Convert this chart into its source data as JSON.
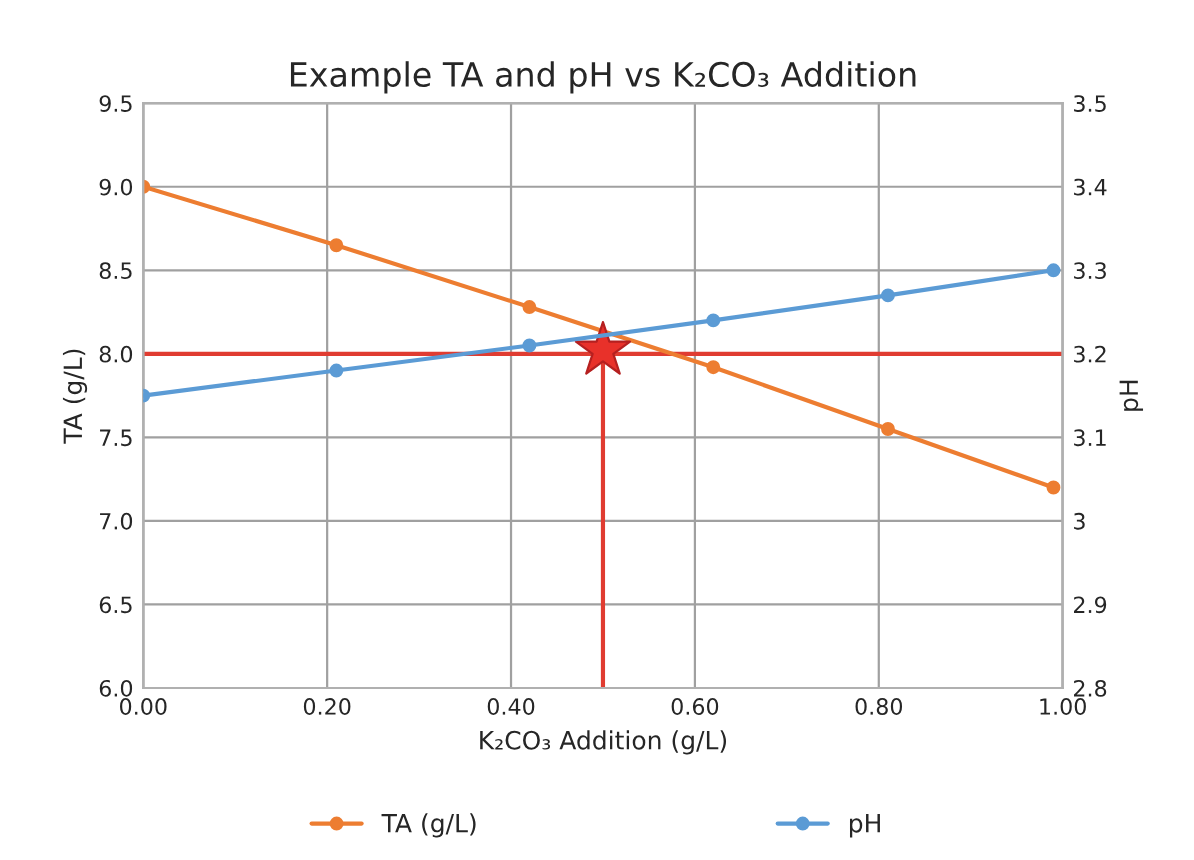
{
  "chart_data": {
    "type": "line",
    "title": "Example TA and pH vs K₂CO₃ Addition",
    "xlabel": "K₂CO₃ Addition (g/L)",
    "ylabel": "TA (g/L)",
    "y2label": "pH",
    "xlim": [
      0,
      1
    ],
    "xticks": [
      {
        "value": 0,
        "label": "0.00"
      },
      {
        "value": 0.2,
        "label": "0.20"
      },
      {
        "value": 0.4,
        "label": "0.40"
      },
      {
        "value": 0.6,
        "label": "0.60"
      },
      {
        "value": 0.8,
        "label": "0.80"
      },
      {
        "value": 1,
        "label": "1.00"
      }
    ],
    "ylim": [
      6,
      9.5
    ],
    "yticks": [
      {
        "value": 6,
        "label": "6.0"
      },
      {
        "value": 6.5,
        "label": "6.5"
      },
      {
        "value": 7,
        "label": "7.0"
      },
      {
        "value": 7.5,
        "label": "7.5"
      },
      {
        "value": 8,
        "label": "8.0"
      },
      {
        "value": 8.5,
        "label": "8.5"
      },
      {
        "value": 9,
        "label": "9.0"
      },
      {
        "value": 9.5,
        "label": "9.5"
      }
    ],
    "y2lim": [
      2.8,
      3.5
    ],
    "y2ticks": [
      2.8,
      2.9,
      3,
      3.1,
      3.2,
      3.3,
      3.4,
      3.5
    ],
    "grid": true,
    "legend": "bottom",
    "marker": "circle",
    "line_style": "solid",
    "series": [
      {
        "name": "TA (g/L)",
        "color": "#ed7d31",
        "x": [
          0,
          0.21,
          0.42,
          0.62,
          0.81,
          0.99
        ],
        "values": [
          9.0,
          8.65,
          8.28,
          7.92,
          7.55,
          7.2
        ]
      },
      {
        "name": "pH",
        "color": "#5b9bd5",
        "axis": "y2",
        "x": [
          0,
          0.21,
          0.42,
          0.62,
          0.81,
          0.99
        ],
        "values": [
          3.15,
          3.18,
          3.21,
          3.24,
          3.27,
          3.3
        ]
      },
      {
        "type": "line",
        "color": "#e03c31",
        "marker": "none",
        "x": [
          0.5,
          0.5
        ],
        "values": [
          6.0,
          8.02
        ]
      },
      {
        "type": "scatter",
        "color": "#e8312a",
        "marker": "star",
        "x": [
          0.5
        ],
        "values": [
          8.02
        ]
      }
    ],
    "ref_lines": [
      {
        "axis": "y",
        "value": 8.0,
        "color": "#e03c31"
      }
    ]
  }
}
